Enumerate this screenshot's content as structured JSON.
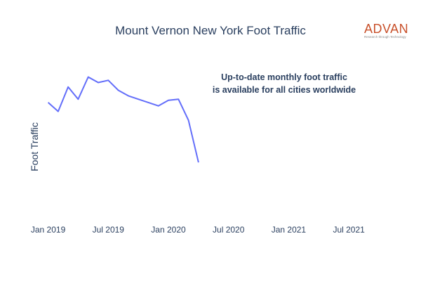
{
  "chart_data": {
    "type": "line",
    "title": "Mount Vernon New York Foot Traffic",
    "xlabel": "",
    "ylabel": "Foot Traffic",
    "annotation": [
      "Up-to-date monthly foot traffic",
      "is available for all cities worldwide"
    ],
    "x_ticks": [
      "Jan 2019",
      "Jul 2019",
      "Jan 2020",
      "Jul 2020",
      "Jan 2021",
      "Jul 2021"
    ],
    "xlim": [
      "2018-11-01",
      "2021-10-01"
    ],
    "ylim": [
      0,
      100
    ],
    "grid": false,
    "legend": "none",
    "series": [
      {
        "color": "#636efa",
        "x": [
          "2019-01",
          "2019-02",
          "2019-03",
          "2019-04",
          "2019-05",
          "2019-06",
          "2019-07",
          "2019-08",
          "2019-09",
          "2019-10",
          "2019-11",
          "2019-12",
          "2020-01",
          "2020-02",
          "2020-03",
          "2020-04"
        ],
        "values": [
          76,
          68,
          90,
          79,
          99,
          94,
          96,
          87,
          82,
          79,
          76,
          73,
          78,
          79,
          60,
          22
        ]
      }
    ]
  },
  "logo": {
    "word": "ADVAN",
    "tagline": "Research through Technology"
  },
  "colors": {
    "text": "#2a3f5f",
    "line": "#636efa",
    "logo": "#c8502a"
  }
}
